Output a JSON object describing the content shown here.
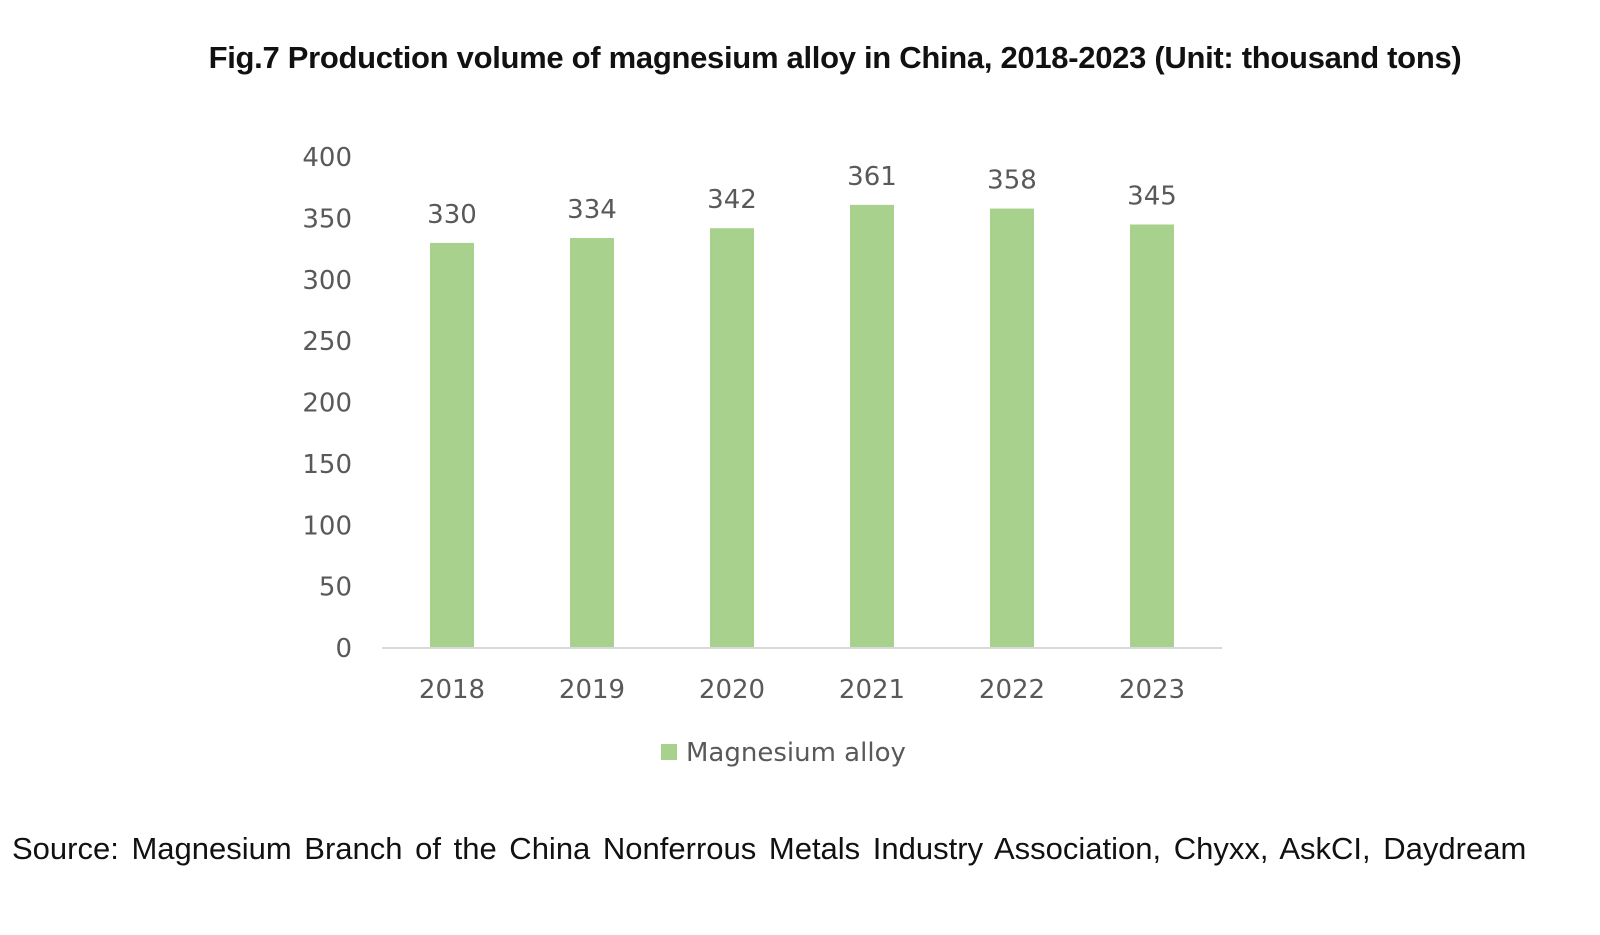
{
  "figure": {
    "title": "Fig.7 Production volume of magnesium alloy in China, 2018-2023 (Unit: thousand tons)",
    "source": "Source: Magnesium Branch of the China Nonferrous Metals Industry Association, Chyxx, AskCI, Daydream"
  },
  "chart_data": {
    "type": "bar",
    "title": "Fig.7 Production volume of magnesium alloy in China, 2018-2023 (Unit: thousand tons)",
    "categories": [
      "2018",
      "2019",
      "2020",
      "2021",
      "2022",
      "2023"
    ],
    "series": [
      {
        "name": "Magnesium alloy",
        "values": [
          330,
          334,
          342,
          361,
          358,
          345
        ],
        "color": "#a9d18e"
      }
    ],
    "ylim": [
      0,
      400
    ],
    "yticks": [
      0,
      50,
      100,
      150,
      200,
      250,
      300,
      350,
      400
    ],
    "xlabel": "",
    "ylabel": "",
    "grid": false,
    "data_labels": true,
    "legend": "bottom",
    "colors": {
      "bar": "#a9d18e",
      "axis_line": "#d9d9d9",
      "label_text": "#595959"
    }
  }
}
